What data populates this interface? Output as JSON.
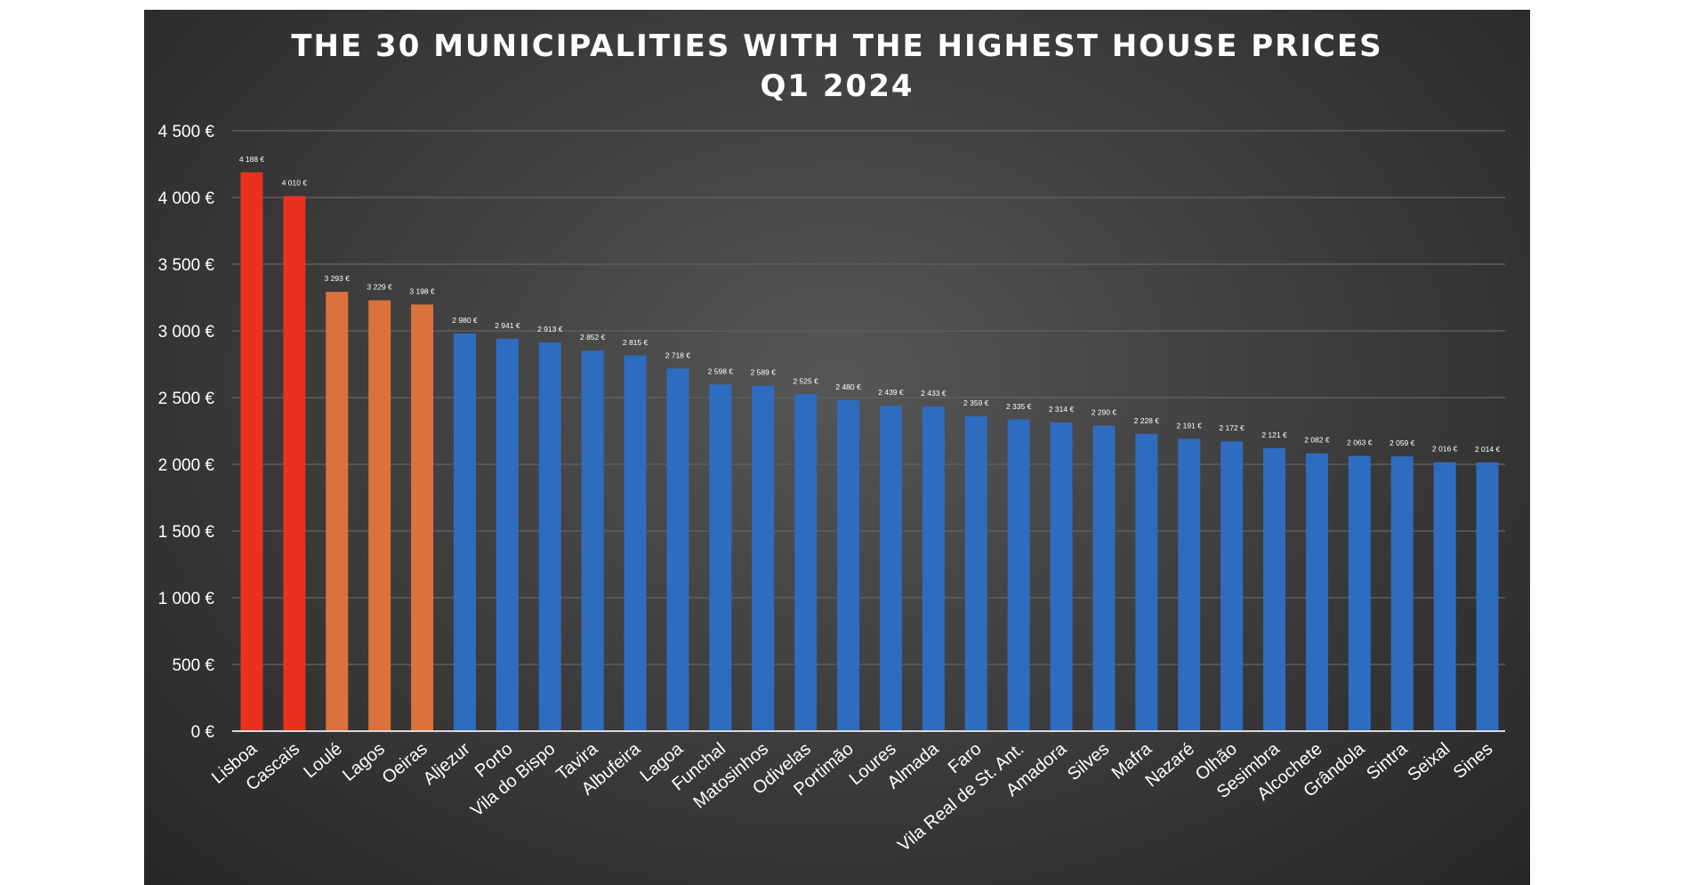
{
  "chart_data": {
    "type": "bar",
    "title": "THE 30 MUNICIPALITIES WITH THE HIGHEST HOUSE PRICES",
    "subtitle": "Q1 2024",
    "xlabel": "",
    "ylabel": "",
    "ylim": [
      0,
      4500
    ],
    "yticks": [
      0,
      500,
      1000,
      1500,
      2000,
      2500,
      3000,
      3500,
      4000,
      4500
    ],
    "ytick_labels": [
      "0 €",
      "500 €",
      "1 000 €",
      "1 500 €",
      "2 000 €",
      "2 500 €",
      "3 000 €",
      "3 500 €",
      "4 000 €",
      "4 500 €"
    ],
    "grid": true,
    "legend": "none",
    "categories": [
      "Lisboa",
      "Cascais",
      "Loulé",
      "Lagos",
      "Oeiras",
      "Aljezur",
      "Porto",
      "Vila do Bispo",
      "Tavira",
      "Albufeira",
      "Lagoa",
      "Funchal",
      "Matosinhos",
      "Odivelas",
      "Portimão",
      "Loures",
      "Almada",
      "Faro",
      "Vila Real de St. Ant.",
      "Amadora",
      "Silves",
      "Mafra",
      "Nazaré",
      "Olhão",
      "Sesimbra",
      "Alcochete",
      "Grândola",
      "Sintra",
      "Seixal",
      "Sines"
    ],
    "values": [
      4188,
      4010,
      3293,
      3229,
      3198,
      2980,
      2941,
      2913,
      2852,
      2815,
      2718,
      2598,
      2589,
      2525,
      2480,
      2439,
      2433,
      2359,
      2335,
      2314,
      2290,
      2228,
      2191,
      2172,
      2121,
      2082,
      2063,
      2059,
      2016,
      2014
    ],
    "value_labels": [
      "4 188 €",
      "4 010 €",
      "3 293 €",
      "3 229 €",
      "3 198 €",
      "2 980 €",
      "2 941 €",
      "2 913 €",
      "2 852 €",
      "2 815 €",
      "2 718 €",
      "2 598 €",
      "2 589 €",
      "2 525 €",
      "2 480 €",
      "2 439 €",
      "2 433 €",
      "2 359 €",
      "2 335 €",
      "2 314 €",
      "2 290 €",
      "2 228 €",
      "2 191 €",
      "2 172 €",
      "2 121 €",
      "2 082 €",
      "2 063 €",
      "2 059 €",
      "2 016 €",
      "2 014 €"
    ],
    "bar_colors": [
      "#e8321e",
      "#e8321e",
      "#d9723c",
      "#d9723c",
      "#d9723c",
      "#2e6cc0",
      "#2e6cc0",
      "#2e6cc0",
      "#2e6cc0",
      "#2e6cc0",
      "#2e6cc0",
      "#2e6cc0",
      "#2e6cc0",
      "#2e6cc0",
      "#2e6cc0",
      "#2e6cc0",
      "#2e6cc0",
      "#2e6cc0",
      "#2e6cc0",
      "#2e6cc0",
      "#2e6cc0",
      "#2e6cc0",
      "#2e6cc0",
      "#2e6cc0",
      "#2e6cc0",
      "#2e6cc0",
      "#2e6cc0",
      "#2e6cc0",
      "#2e6cc0",
      "#2e6cc0"
    ]
  }
}
